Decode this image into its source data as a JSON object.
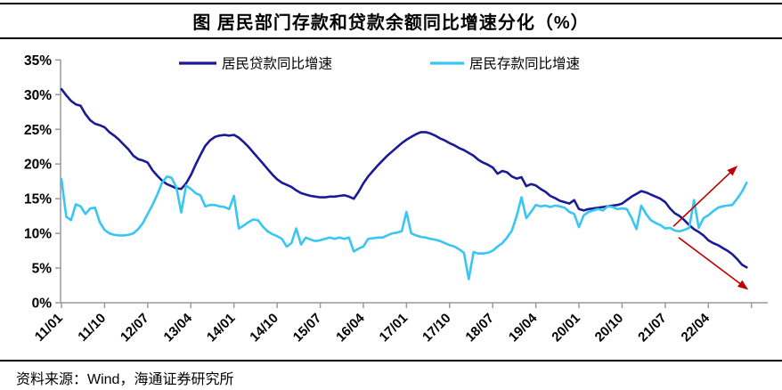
{
  "title": "图 居民部门存款和贷款余额同比增速分化（%）",
  "source": "资料来源：Wind，海通证券研究所",
  "colors": {
    "loan_line": "#1a1a96",
    "deposit_line": "#38c6f4",
    "arrow": "#c00000",
    "axis": "#999999",
    "text": "#000000"
  },
  "legend": {
    "loan_label": "居民贷款同比增速",
    "deposit_label": "居民存款同比增速"
  },
  "chart_data": {
    "type": "line",
    "frequency": "monthly",
    "x_start": "2011/01",
    "x_end": "2022/12",
    "grid": false,
    "legend_position": "top",
    "ylim": [
      0,
      35
    ],
    "y_tick_values": [
      0,
      5,
      10,
      15,
      20,
      25,
      30,
      35
    ],
    "y_tick_labels": [
      "0%",
      "5%",
      "10%",
      "15%",
      "20%",
      "25%",
      "30%",
      "35%"
    ],
    "x_tick_labels": [
      "11/01",
      "11/10",
      "12/07",
      "13/04",
      "14/01",
      "14/10",
      "15/07",
      "16/04",
      "17/01",
      "17/10",
      "18/07",
      "19/04",
      "20/01",
      "20/10",
      "21/07",
      "22/04"
    ],
    "x_tick_month_indices": [
      0,
      9,
      18,
      27,
      36,
      45,
      54,
      63,
      72,
      81,
      90,
      99,
      108,
      117,
      126,
      135
    ],
    "x_extra_tick_month_index": 144,
    "series": [
      {
        "name": "居民贷款同比增速",
        "color": "#1a1a96",
        "values": [
          30.8,
          29.9,
          29.1,
          28.6,
          28.4,
          27.2,
          26.3,
          25.8,
          25.6,
          25.3,
          24.6,
          24.1,
          23.5,
          22.8,
          22.1,
          21.2,
          20.7,
          20.5,
          20.2,
          19.1,
          18.3,
          17.6,
          17.1,
          16.8,
          16.5,
          16.4,
          17.2,
          18.4,
          19.9,
          21.3,
          22.6,
          23.4,
          23.9,
          24.1,
          24.2,
          24.1,
          24.2,
          23.8,
          23.2,
          22.5,
          21.7,
          20.9,
          20.1,
          19.3,
          18.5,
          17.8,
          17.3,
          17.0,
          16.7,
          16.2,
          15.8,
          15.6,
          15.4,
          15.3,
          15.2,
          15.2,
          15.3,
          15.3,
          15.4,
          15.5,
          15.3,
          15.0,
          16.0,
          17.2,
          18.2,
          19.0,
          19.8,
          20.5,
          21.2,
          21.8,
          22.4,
          23.0,
          23.5,
          23.9,
          24.3,
          24.6,
          24.6,
          24.4,
          24.1,
          23.7,
          23.4,
          23.0,
          22.7,
          22.3,
          22.0,
          21.6,
          21.2,
          20.6,
          20.2,
          19.9,
          19.5,
          18.6,
          19.0,
          18.8,
          18.2,
          17.9,
          18.1,
          16.8,
          17.1,
          16.9,
          16.4,
          16.0,
          15.4,
          15.1,
          14.7,
          14.5,
          14.3,
          14.8,
          13.5,
          13.3,
          13.5,
          13.6,
          13.7,
          13.8,
          13.9,
          14.0,
          14.1,
          14.3,
          14.8,
          15.3,
          15.7,
          16.1,
          15.9,
          15.6,
          15.3,
          15.0,
          14.5,
          13.6,
          12.9,
          12.5,
          11.9,
          11.2,
          10.6,
          10.2,
          9.7,
          9.0,
          8.6,
          8.3,
          7.9,
          7.5,
          7.0,
          6.3,
          5.5,
          5.1
        ]
      },
      {
        "name": "居民存款同比增速",
        "color": "#38c6f4",
        "values": [
          17.8,
          12.4,
          11.9,
          14.2,
          13.9,
          12.8,
          13.6,
          13.7,
          11.6,
          10.5,
          10.0,
          9.8,
          9.7,
          9.7,
          9.8,
          10.0,
          10.6,
          11.5,
          12.8,
          14.1,
          15.6,
          17.3,
          18.2,
          18.0,
          16.6,
          13.0,
          16.9,
          16.4,
          15.8,
          15.5,
          13.9,
          14.1,
          14.1,
          13.9,
          13.8,
          13.5,
          15.4,
          10.7,
          11.1,
          11.6,
          12.0,
          11.9,
          11.0,
          10.3,
          9.9,
          9.6,
          9.2,
          8.1,
          8.6,
          10.7,
          8.4,
          9.4,
          9.1,
          8.9,
          9.0,
          9.2,
          9.4,
          9.2,
          9.4,
          9.2,
          9.4,
          7.4,
          7.8,
          8.1,
          9.2,
          9.3,
          9.4,
          9.4,
          9.7,
          10.0,
          10.1,
          10.3,
          13.1,
          10.0,
          9.7,
          9.5,
          9.4,
          9.2,
          9.1,
          8.9,
          8.6,
          8.3,
          8.1,
          7.7,
          7.2,
          3.4,
          7.3,
          7.1,
          7.1,
          7.2,
          7.5,
          8.1,
          8.6,
          9.4,
          10.4,
          12.5,
          15.2,
          12.2,
          13.1,
          14.1,
          13.9,
          14.0,
          13.8,
          14.0,
          13.9,
          13.7,
          13.1,
          12.8,
          10.9,
          12.6,
          13.1,
          13.3,
          13.5,
          13.3,
          13.9,
          13.8,
          13.5,
          13.6,
          13.5,
          12.2,
          10.6,
          14.0,
          12.8,
          11.9,
          11.5,
          11.2,
          10.7,
          10.8,
          10.4,
          10.3,
          10.5,
          10.8,
          14.8,
          10.8,
          12.2,
          12.6,
          13.2,
          13.7,
          13.9,
          14.0,
          14.1,
          15.0,
          16.0,
          17.3
        ]
      }
    ],
    "annotations": [
      {
        "type": "arrow",
        "direction": "up",
        "color": "#c00000",
        "from": {
          "month": 127.7,
          "value": 11.0
        },
        "to": {
          "month": 140.7,
          "value": 19.5
        }
      },
      {
        "type": "arrow",
        "direction": "down",
        "color": "#c00000",
        "from": {
          "month": 128.8,
          "value": 9.4
        },
        "to": {
          "month": 142.9,
          "value": 2.1
        }
      }
    ]
  }
}
